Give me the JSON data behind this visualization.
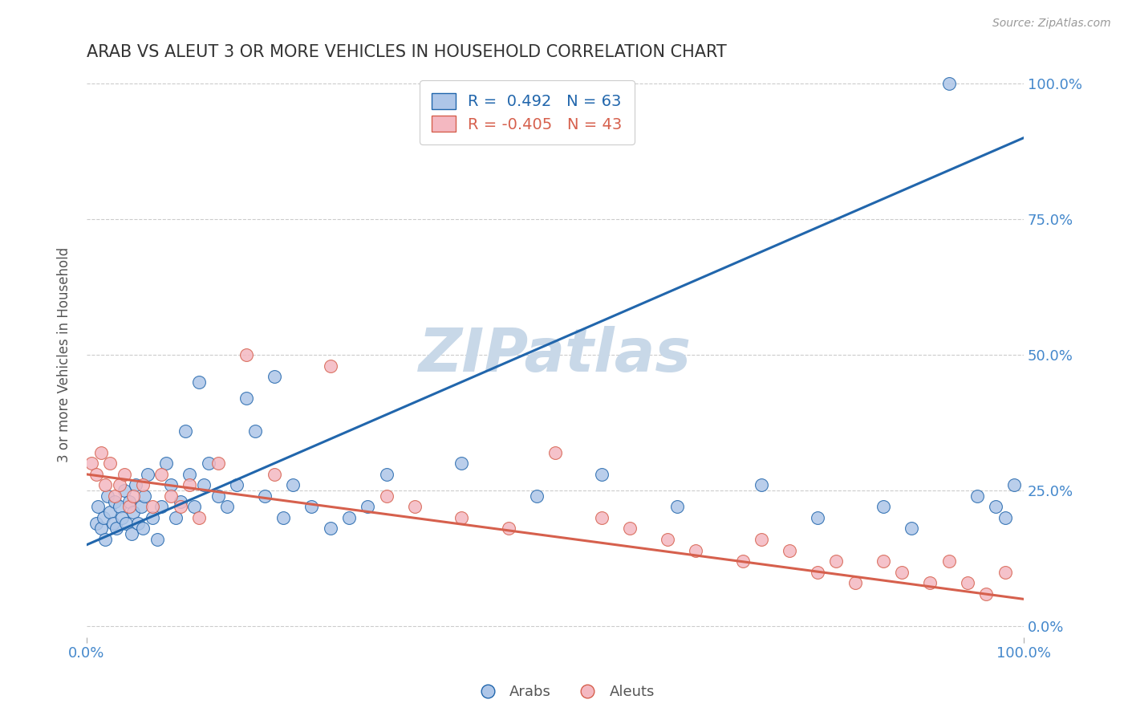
{
  "title": "ARAB VS ALEUT 3 OR MORE VEHICLES IN HOUSEHOLD CORRELATION CHART",
  "source_text": "Source: ZipAtlas.com",
  "ylabel": "3 or more Vehicles in Household",
  "xlim": [
    0.0,
    100.0
  ],
  "ylim": [
    -2.0,
    102.0
  ],
  "ytick_vals": [
    0,
    25,
    50,
    75,
    100
  ],
  "ytick_labels": [
    "0.0%",
    "25.0%",
    "50.0%",
    "75.0%",
    "100.0%"
  ],
  "arab_R": 0.492,
  "arab_N": 63,
  "aleut_R": -0.405,
  "aleut_N": 43,
  "arab_color": "#aec6e8",
  "aleut_color": "#f4b8c1",
  "arab_line_color": "#2166ac",
  "aleut_line_color": "#d6604d",
  "watermark_text": "ZIPatlas",
  "watermark_color": "#c8d8e8",
  "grid_color": "#cccccc",
  "title_color": "#333333",
  "axis_label_color": "#555555",
  "tick_label_color_blue": "#4488cc",
  "background_color": "#ffffff",
  "arab_line_start_y": 15.0,
  "arab_line_end_y": 90.0,
  "aleut_line_start_y": 28.0,
  "aleut_line_end_y": 5.0,
  "arab_x": [
    1.0,
    1.2,
    1.5,
    1.8,
    2.0,
    2.2,
    2.5,
    2.8,
    3.0,
    3.2,
    3.5,
    3.8,
    4.0,
    4.2,
    4.5,
    4.8,
    5.0,
    5.2,
    5.5,
    5.8,
    6.0,
    6.2,
    6.5,
    7.0,
    7.5,
    8.0,
    8.5,
    9.0,
    9.5,
    10.0,
    10.5,
    11.0,
    11.5,
    12.0,
    12.5,
    13.0,
    14.0,
    15.0,
    16.0,
    17.0,
    18.0,
    19.0,
    20.0,
    21.0,
    22.0,
    24.0,
    26.0,
    28.0,
    30.0,
    32.0,
    40.0,
    48.0,
    55.0,
    63.0,
    72.0,
    78.0,
    85.0,
    88.0,
    92.0,
    95.0,
    97.0,
    98.0,
    99.0
  ],
  "arab_y": [
    19.0,
    22.0,
    18.0,
    20.0,
    16.0,
    24.0,
    21.0,
    19.0,
    23.0,
    18.0,
    22.0,
    20.0,
    25.0,
    19.0,
    23.0,
    17.0,
    21.0,
    26.0,
    19.0,
    22.0,
    18.0,
    24.0,
    28.0,
    20.0,
    16.0,
    22.0,
    30.0,
    26.0,
    20.0,
    23.0,
    36.0,
    28.0,
    22.0,
    45.0,
    26.0,
    30.0,
    24.0,
    22.0,
    26.0,
    42.0,
    36.0,
    24.0,
    46.0,
    20.0,
    26.0,
    22.0,
    18.0,
    20.0,
    22.0,
    28.0,
    30.0,
    24.0,
    28.0,
    22.0,
    26.0,
    20.0,
    22.0,
    18.0,
    100.0,
    24.0,
    22.0,
    20.0,
    26.0
  ],
  "aleut_x": [
    0.5,
    1.0,
    1.5,
    2.0,
    2.5,
    3.0,
    3.5,
    4.0,
    4.5,
    5.0,
    6.0,
    7.0,
    8.0,
    9.0,
    10.0,
    11.0,
    12.0,
    14.0,
    17.0,
    20.0,
    26.0,
    32.0,
    35.0,
    40.0,
    45.0,
    50.0,
    55.0,
    58.0,
    62.0,
    65.0,
    70.0,
    72.0,
    75.0,
    78.0,
    80.0,
    82.0,
    85.0,
    87.0,
    90.0,
    92.0,
    94.0,
    96.0,
    98.0
  ],
  "aleut_y": [
    30.0,
    28.0,
    32.0,
    26.0,
    30.0,
    24.0,
    26.0,
    28.0,
    22.0,
    24.0,
    26.0,
    22.0,
    28.0,
    24.0,
    22.0,
    26.0,
    20.0,
    30.0,
    50.0,
    28.0,
    48.0,
    24.0,
    22.0,
    20.0,
    18.0,
    32.0,
    20.0,
    18.0,
    16.0,
    14.0,
    12.0,
    16.0,
    14.0,
    10.0,
    12.0,
    8.0,
    12.0,
    10.0,
    8.0,
    12.0,
    8.0,
    6.0,
    10.0
  ]
}
